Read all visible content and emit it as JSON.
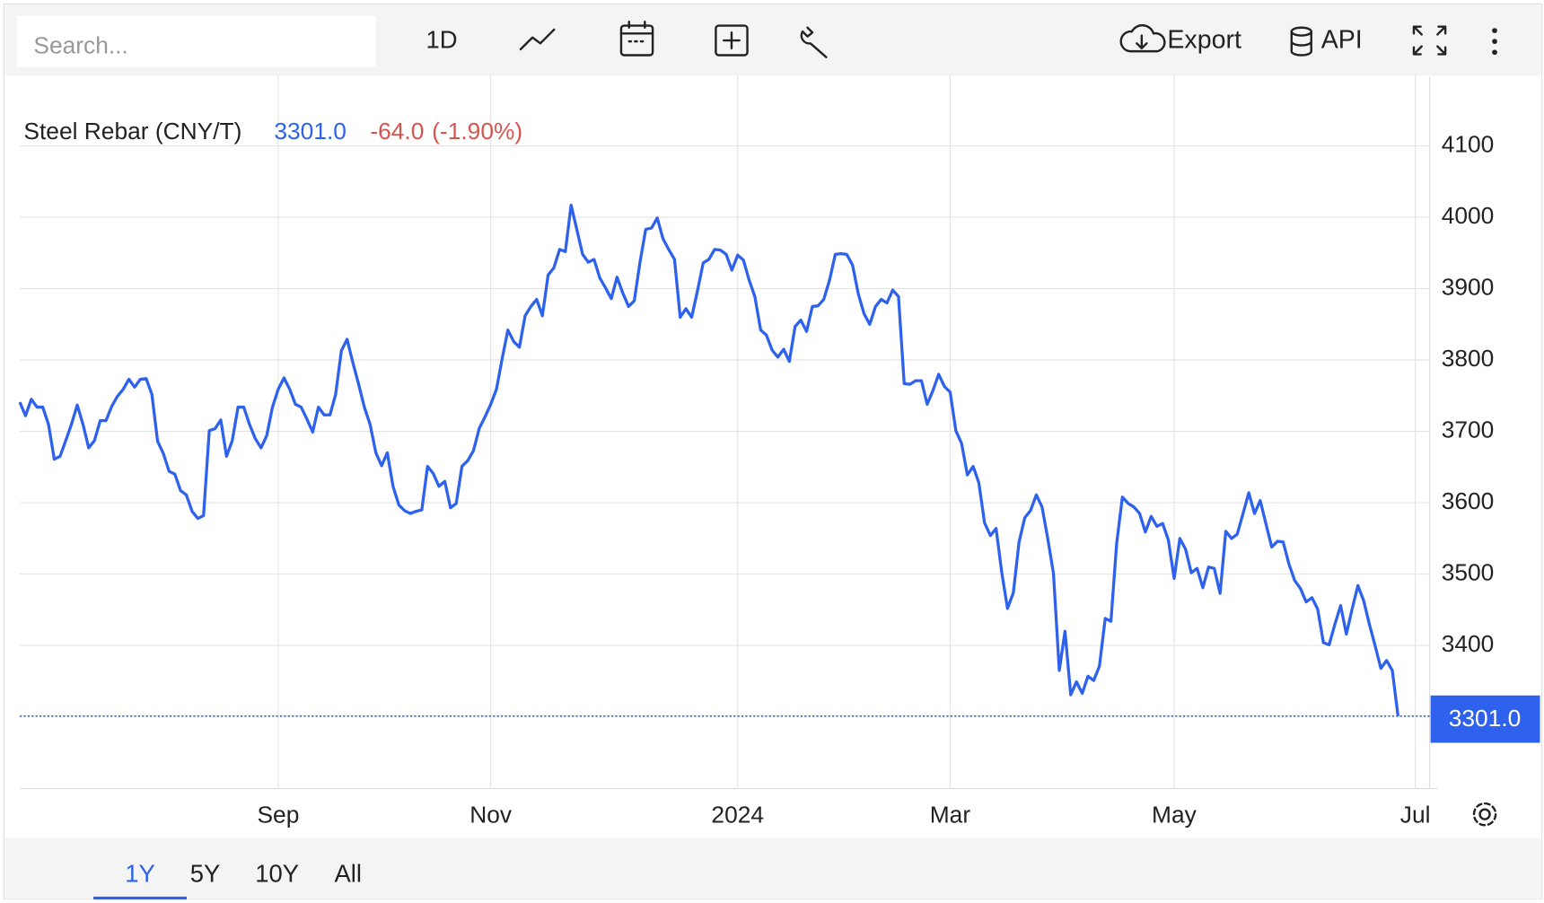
{
  "toolbar": {
    "search_placeholder": "Search...",
    "interval": "1D",
    "export": "Export",
    "api": "API"
  },
  "ranges": {
    "items": [
      "1Y",
      "5Y",
      "10Y",
      "All"
    ],
    "active": "1Y"
  },
  "chart_data": {
    "type": "line",
    "title": "Steel Rebar (CNY/T)",
    "last": {
      "value": 3301,
      "label": "3301.0"
    },
    "change": {
      "value": -64,
      "label": "-64.0"
    },
    "change_pct": {
      "value": -1.9,
      "label": "(-1.90%)"
    },
    "series": [
      {
        "name": "Steel Rebar (CNY/T)",
        "color": "#2f62ec",
        "values": [
          3741,
          3722,
          3745,
          3734,
          3734,
          3710,
          3661,
          3665,
          3687,
          3710,
          3737,
          3710,
          3677,
          3687,
          3715,
          3715,
          3735,
          3749,
          3759,
          3773,
          3762,
          3773,
          3774,
          3752,
          3686,
          3669,
          3644,
          3640,
          3617,
          3611,
          3588,
          3578,
          3582,
          3701,
          3704,
          3716,
          3665,
          3687,
          3734,
          3734,
          3710,
          3690,
          3677,
          3694,
          3734,
          3759,
          3775,
          3759,
          3738,
          3734,
          3717,
          3699,
          3734,
          3723,
          3723,
          3752,
          3813,
          3829,
          3796,
          3766,
          3734,
          3710,
          3670,
          3652,
          3670,
          3623,
          3597,
          3589,
          3585,
          3588,
          3590,
          3651,
          3641,
          3623,
          3630,
          3593,
          3599,
          3651,
          3659,
          3673,
          3704,
          3720,
          3738,
          3759,
          3802,
          3842,
          3826,
          3818,
          3862,
          3875,
          3885,
          3862,
          3919,
          3929,
          3955,
          3952,
          4017,
          3983,
          3948,
          3937,
          3941,
          3915,
          3901,
          3886,
          3916,
          3894,
          3875,
          3883,
          3937,
          3983,
          3985,
          3999,
          3970,
          3955,
          3941,
          3860,
          3872,
          3860,
          3897,
          3936,
          3941,
          3955,
          3954,
          3948,
          3926,
          3947,
          3940,
          3912,
          3889,
          3842,
          3835,
          3814,
          3804,
          3815,
          3798,
          3847,
          3856,
          3840,
          3875,
          3876,
          3885,
          3912,
          3948,
          3949,
          3948,
          3933,
          3893,
          3865,
          3850,
          3875,
          3885,
          3880,
          3898,
          3889,
          3767,
          3766,
          3771,
          3771,
          3738,
          3757,
          3780,
          3763,
          3755,
          3701,
          3683,
          3639,
          3651,
          3628,
          3572,
          3554,
          3564,
          3502,
          3452,
          3474,
          3545,
          3579,
          3589,
          3611,
          3594,
          3550,
          3501,
          3365,
          3420,
          3331,
          3349,
          3333,
          3357,
          3351,
          3371,
          3438,
          3434,
          3543,
          3608,
          3599,
          3594,
          3585,
          3559,
          3581,
          3567,
          3571,
          3548,
          3494,
          3550,
          3535,
          3502,
          3508,
          3481,
          3510,
          3508,
          3473,
          3560,
          3550,
          3556,
          3585,
          3614,
          3585,
          3603,
          3570,
          3538,
          3546,
          3545,
          3514,
          3491,
          3480,
          3461,
          3467,
          3451,
          3404,
          3401,
          3430,
          3456,
          3416,
          3451,
          3484,
          3463,
          3430,
          3400,
          3368,
          3379,
          3365,
          3301
        ]
      }
    ],
    "xlim": [
      0,
      246
    ],
    "xticks": [
      {
        "value": 45,
        "label": "Sep"
      },
      {
        "value": 82,
        "label": "Nov"
      },
      {
        "value": 125,
        "label": "2024"
      },
      {
        "value": 162,
        "label": "Mar"
      },
      {
        "value": 201,
        "label": "May"
      },
      {
        "value": 243,
        "label": "Jul"
      }
    ],
    "ylim": [
      3200,
      4200
    ],
    "yticks": [
      3400,
      3500,
      3600,
      3700,
      3800,
      3900,
      4000,
      4100
    ],
    "grid": true
  }
}
